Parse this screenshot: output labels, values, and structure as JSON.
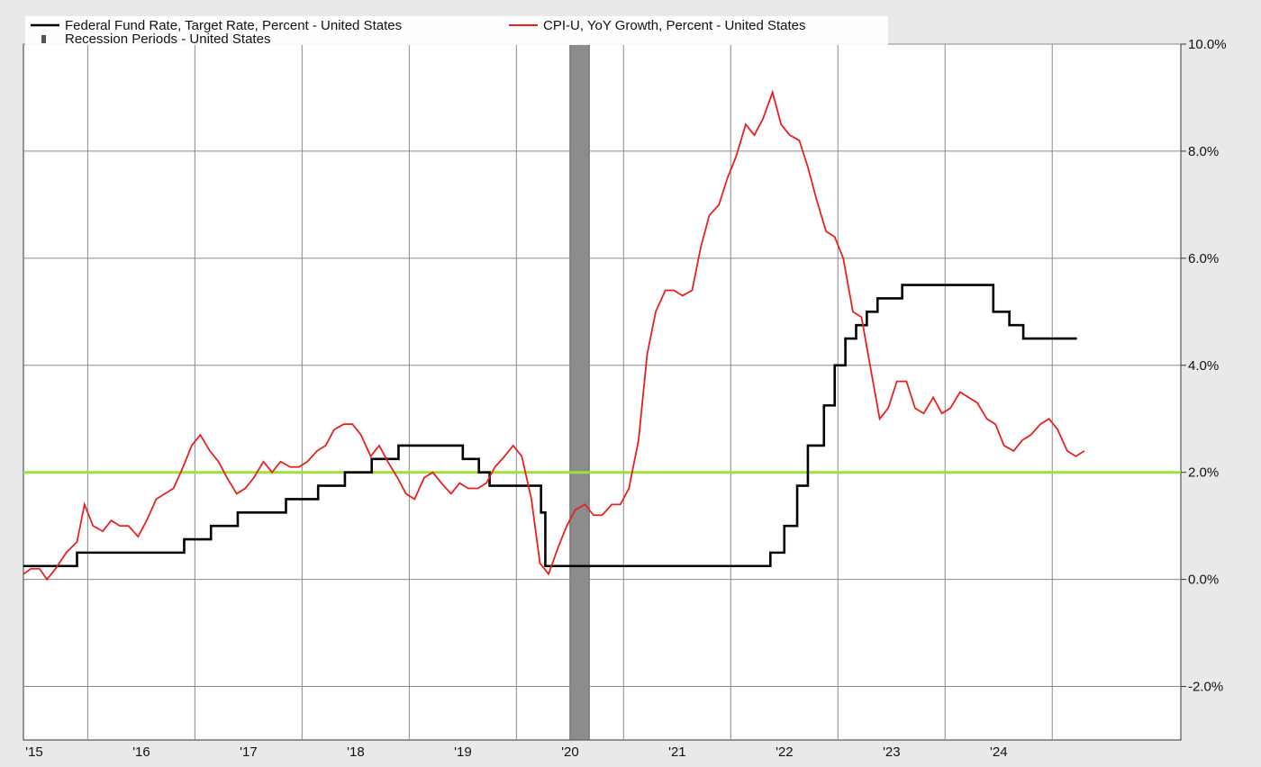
{
  "chart_data": {
    "type": "line",
    "title": "",
    "legend": {
      "placement": "top-left",
      "entries": [
        {
          "label": "Federal Fund Rate, Target Rate, Percent - United States",
          "color": "#000000",
          "marker": "line"
        },
        {
          "label": "CPI-U, YoY Growth, Percent - United States",
          "color": "#e8201e",
          "marker": "line"
        },
        {
          "label": "Recession Periods - United States",
          "color": "#555555",
          "marker": "block"
        }
      ]
    },
    "x_axis": {
      "range": [
        2015.0,
        2025.8
      ],
      "ticks": [
        {
          "value": 2015.0,
          "label": "'15"
        },
        {
          "value": 2016.0,
          "label": "'16"
        },
        {
          "value": 2017.0,
          "label": "'17"
        },
        {
          "value": 2018.0,
          "label": "'18"
        },
        {
          "value": 2019.0,
          "label": "'19"
        },
        {
          "value": 2020.0,
          "label": "'20"
        },
        {
          "value": 2021.0,
          "label": "'21"
        },
        {
          "value": 2022.0,
          "label": "'22"
        },
        {
          "value": 2023.0,
          "label": "'23"
        },
        {
          "value": 2024.0,
          "label": "'24"
        }
      ],
      "gridlines": [
        2015.6,
        2016.6,
        2017.6,
        2018.6,
        2019.6,
        2020.6,
        2021.6,
        2022.6,
        2023.6,
        2024.6
      ]
    },
    "y_axis": {
      "range": [
        -3.0,
        10.0
      ],
      "position": "right",
      "grid": true,
      "ticks": [
        {
          "value": 10,
          "label": "10.0%"
        },
        {
          "value": 8,
          "label": "8.0%"
        },
        {
          "value": 6,
          "label": "6.0%"
        },
        {
          "value": 4,
          "label": "4.0%"
        },
        {
          "value": 2,
          "label": "2.0%"
        },
        {
          "value": 0,
          "label": "0.0%"
        },
        {
          "value": -2,
          "label": "-2.0%"
        }
      ]
    },
    "reference_line": {
      "value": 2.0,
      "color": "#9ee03c"
    },
    "recession": [
      {
        "from": 2020.1,
        "to": 2020.28,
        "color": "#8c8c8c"
      }
    ],
    "series": [
      {
        "name": "Federal Fund Rate, Target Rate, Percent - United States",
        "color": "#000000",
        "step": true,
        "points": [
          [
            2015.0,
            0.25
          ],
          [
            2015.5,
            0.5
          ],
          [
            2016.5,
            0.75
          ],
          [
            2016.75,
            1.0
          ],
          [
            2017.0,
            1.25
          ],
          [
            2017.45,
            1.5
          ],
          [
            2017.75,
            1.75
          ],
          [
            2018.0,
            2.0
          ],
          [
            2018.25,
            2.25
          ],
          [
            2018.5,
            2.5
          ],
          [
            2019.1,
            2.25
          ],
          [
            2019.25,
            2.0
          ],
          [
            2019.35,
            1.75
          ],
          [
            2019.83,
            1.25
          ],
          [
            2019.87,
            0.25
          ],
          [
            2021.97,
            0.5
          ],
          [
            2022.1,
            1.0
          ],
          [
            2022.22,
            1.75
          ],
          [
            2022.32,
            2.5
          ],
          [
            2022.47,
            3.25
          ],
          [
            2022.57,
            4.0
          ],
          [
            2022.67,
            4.5
          ],
          [
            2022.77,
            4.75
          ],
          [
            2022.87,
            5.0
          ],
          [
            2022.97,
            5.25
          ],
          [
            2023.2,
            5.5
          ],
          [
            2024.05,
            5.0
          ],
          [
            2024.2,
            4.75
          ],
          [
            2024.33,
            4.5
          ],
          [
            2024.83,
            4.5
          ]
        ]
      },
      {
        "name": "CPI-U, YoY Growth, Percent - United States",
        "color": "#e8201e",
        "step": false,
        "points": [
          [
            2015.0,
            0.1
          ],
          [
            2015.07,
            0.2
          ],
          [
            2015.15,
            0.2
          ],
          [
            2015.22,
            0.0
          ],
          [
            2015.3,
            0.2
          ],
          [
            2015.4,
            0.5
          ],
          [
            2015.5,
            0.7
          ],
          [
            2015.57,
            1.4
          ],
          [
            2015.65,
            1.0
          ],
          [
            2015.74,
            0.9
          ],
          [
            2015.82,
            1.1
          ],
          [
            2015.9,
            1.0
          ],
          [
            2015.98,
            1.0
          ],
          [
            2016.07,
            0.8
          ],
          [
            2016.15,
            1.1
          ],
          [
            2016.24,
            1.5
          ],
          [
            2016.32,
            1.6
          ],
          [
            2016.4,
            1.7
          ],
          [
            2016.49,
            2.1
          ],
          [
            2016.57,
            2.5
          ],
          [
            2016.65,
            2.7
          ],
          [
            2016.74,
            2.4
          ],
          [
            2016.82,
            2.2
          ],
          [
            2016.9,
            1.9
          ],
          [
            2016.99,
            1.6
          ],
          [
            2017.07,
            1.7
          ],
          [
            2017.15,
            1.9
          ],
          [
            2017.24,
            2.2
          ],
          [
            2017.32,
            2.0
          ],
          [
            2017.4,
            2.2
          ],
          [
            2017.49,
            2.1
          ],
          [
            2017.57,
            2.1
          ],
          [
            2017.65,
            2.2
          ],
          [
            2017.74,
            2.4
          ],
          [
            2017.82,
            2.5
          ],
          [
            2017.9,
            2.8
          ],
          [
            2017.99,
            2.9
          ],
          [
            2018.07,
            2.9
          ],
          [
            2018.15,
            2.7
          ],
          [
            2018.24,
            2.3
          ],
          [
            2018.32,
            2.5
          ],
          [
            2018.4,
            2.2
          ],
          [
            2018.49,
            1.9
          ],
          [
            2018.57,
            1.6
          ],
          [
            2018.65,
            1.5
          ],
          [
            2018.74,
            1.9
          ],
          [
            2018.82,
            2.0
          ],
          [
            2018.9,
            1.8
          ],
          [
            2018.99,
            1.6
          ],
          [
            2019.07,
            1.8
          ],
          [
            2019.15,
            1.7
          ],
          [
            2019.24,
            1.7
          ],
          [
            2019.32,
            1.8
          ],
          [
            2019.4,
            2.1
          ],
          [
            2019.49,
            2.3
          ],
          [
            2019.57,
            2.5
          ],
          [
            2019.65,
            2.3
          ],
          [
            2019.74,
            1.5
          ],
          [
            2019.82,
            0.3
          ],
          [
            2019.9,
            0.1
          ],
          [
            2019.99,
            0.6
          ],
          [
            2020.07,
            1.0
          ],
          [
            2020.15,
            1.3
          ],
          [
            2020.24,
            1.4
          ],
          [
            2020.32,
            1.2
          ],
          [
            2020.4,
            1.2
          ],
          [
            2020.49,
            1.4
          ],
          [
            2020.57,
            1.4
          ],
          [
            2020.65,
            1.7
          ],
          [
            2020.74,
            2.6
          ],
          [
            2020.82,
            4.2
          ],
          [
            2020.9,
            5.0
          ],
          [
            2020.99,
            5.4
          ],
          [
            2021.07,
            5.4
          ],
          [
            2021.15,
            5.3
          ],
          [
            2021.24,
            5.4
          ],
          [
            2021.32,
            6.2
          ],
          [
            2021.4,
            6.8
          ],
          [
            2021.49,
            7.0
          ],
          [
            2021.57,
            7.5
          ],
          [
            2021.65,
            7.9
          ],
          [
            2021.74,
            8.5
          ],
          [
            2021.82,
            8.3
          ],
          [
            2021.9,
            8.6
          ],
          [
            2021.99,
            9.1
          ],
          [
            2022.07,
            8.5
          ],
          [
            2022.15,
            8.3
          ],
          [
            2022.24,
            8.2
          ],
          [
            2022.32,
            7.7
          ],
          [
            2022.4,
            7.1
          ],
          [
            2022.49,
            6.5
          ],
          [
            2022.57,
            6.4
          ],
          [
            2022.65,
            6.0
          ],
          [
            2022.74,
            5.0
          ],
          [
            2022.82,
            4.9
          ],
          [
            2022.9,
            4.0
          ],
          [
            2022.99,
            3.0
          ],
          [
            2023.07,
            3.2
          ],
          [
            2023.15,
            3.7
          ],
          [
            2023.24,
            3.7
          ],
          [
            2023.32,
            3.2
          ],
          [
            2023.4,
            3.1
          ],
          [
            2023.49,
            3.4
          ],
          [
            2023.57,
            3.1
          ],
          [
            2023.65,
            3.2
          ],
          [
            2023.74,
            3.5
          ],
          [
            2023.82,
            3.4
          ],
          [
            2023.9,
            3.3
          ],
          [
            2023.99,
            3.0
          ],
          [
            2024.07,
            2.9
          ],
          [
            2024.15,
            2.5
          ],
          [
            2024.24,
            2.4
          ],
          [
            2024.32,
            2.6
          ],
          [
            2024.4,
            2.7
          ],
          [
            2024.49,
            2.9
          ],
          [
            2024.57,
            3.0
          ],
          [
            2024.65,
            2.8
          ],
          [
            2024.74,
            2.4
          ],
          [
            2024.82,
            2.3
          ],
          [
            2024.9,
            2.4
          ]
        ]
      }
    ]
  }
}
